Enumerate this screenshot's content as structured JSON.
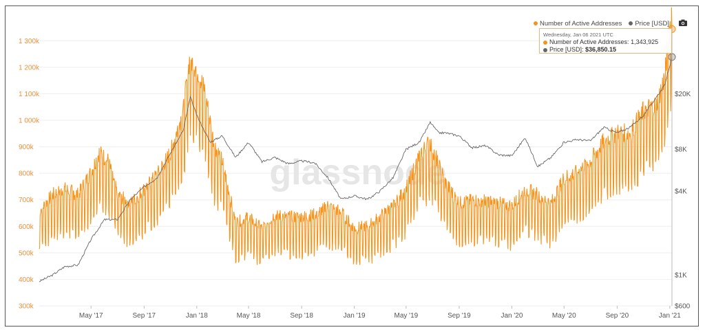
{
  "legend": {
    "series1": "Number of Active Addresses",
    "series2": "Price [USD]"
  },
  "tooltip": {
    "date": "Wednesday, Jan 06 2021 UTC",
    "line1_label": "Number of Active Addresses: ",
    "line1_value": "1,343,925",
    "line2_label": "Price [USD]: ",
    "line2_value": "$36,850.15"
  },
  "watermark": "glassnode",
  "icons": {
    "camera": "camera-icon"
  },
  "colors": {
    "active_addresses": "#f7931a",
    "price": "#666666",
    "left_axis": "#e8903a"
  },
  "chart_data": {
    "type": "line",
    "x_axis": {
      "range": [
        "2017-01-01",
        "2021-01-06"
      ],
      "ticks": [
        "May '17",
        "Sep '17",
        "Jan '18",
        "May '18",
        "Sep '18",
        "Jan '19",
        "May '19",
        "Sep '19",
        "Jan '20",
        "May '20",
        "Sep '20",
        "Jan '21"
      ]
    },
    "y_left": {
      "range": [
        300000,
        1350000
      ],
      "ticks": [
        300000,
        400000,
        500000,
        600000,
        700000,
        800000,
        900000,
        1000000,
        1100000,
        1200000,
        1300000
      ],
      "tick_labels": [
        "300k",
        "400k",
        "500k",
        "600k",
        "700k",
        "800k",
        "900k",
        "1 000k",
        "1 100k",
        "1 200k",
        "1 300k"
      ]
    },
    "y_right": {
      "scale": "log",
      "range": [
        600,
        60000
      ],
      "ticks": [
        600,
        1000,
        4000,
        8000,
        20000
      ],
      "tick_labels": [
        "$600",
        "$1K",
        "$4K",
        "$8K",
        "$20K"
      ]
    },
    "grid": "horizontal",
    "legend_position": "top-right",
    "series": [
      {
        "name": "Number of Active Addresses",
        "axis": "left",
        "color": "#f7931a",
        "points": [
          [
            "2017-01-01",
            620000
          ],
          [
            "2017-02-01",
            680000
          ],
          [
            "2017-03-01",
            700000
          ],
          [
            "2017-04-01",
            680000
          ],
          [
            "2017-05-01",
            760000
          ],
          [
            "2017-05-20",
            830000
          ],
          [
            "2017-06-10",
            800000
          ],
          [
            "2017-07-01",
            680000
          ],
          [
            "2017-08-01",
            650000
          ],
          [
            "2017-09-01",
            700000
          ],
          [
            "2017-10-01",
            750000
          ],
          [
            "2017-11-01",
            830000
          ],
          [
            "2017-12-01",
            980000
          ],
          [
            "2017-12-15",
            1160000
          ],
          [
            "2018-01-01",
            1130000
          ],
          [
            "2018-01-20",
            1050000
          ],
          [
            "2018-02-10",
            860000
          ],
          [
            "2018-03-01",
            800000
          ],
          [
            "2018-04-01",
            580000
          ],
          [
            "2018-05-01",
            600000
          ],
          [
            "2018-06-01",
            560000
          ],
          [
            "2018-07-01",
            610000
          ],
          [
            "2018-08-01",
            600000
          ],
          [
            "2018-09-01",
            600000
          ],
          [
            "2018-10-01",
            610000
          ],
          [
            "2018-11-01",
            640000
          ],
          [
            "2018-12-01",
            620000
          ],
          [
            "2019-01-01",
            560000
          ],
          [
            "2019-02-01",
            570000
          ],
          [
            "2019-03-01",
            600000
          ],
          [
            "2019-04-01",
            640000
          ],
          [
            "2019-05-01",
            700000
          ],
          [
            "2019-06-01",
            820000
          ],
          [
            "2019-06-25",
            870000
          ],
          [
            "2019-08-01",
            720000
          ],
          [
            "2019-09-01",
            650000
          ],
          [
            "2019-10-01",
            660000
          ],
          [
            "2019-11-01",
            660000
          ],
          [
            "2019-12-01",
            650000
          ],
          [
            "2020-01-01",
            640000
          ],
          [
            "2020-02-01",
            700000
          ],
          [
            "2020-03-01",
            680000
          ],
          [
            "2020-04-01",
            650000
          ],
          [
            "2020-05-01",
            740000
          ],
          [
            "2020-06-01",
            760000
          ],
          [
            "2020-07-01",
            800000
          ],
          [
            "2020-08-01",
            870000
          ],
          [
            "2020-09-01",
            900000
          ],
          [
            "2020-10-01",
            900000
          ],
          [
            "2020-11-01",
            980000
          ],
          [
            "2020-12-01",
            1000000
          ],
          [
            "2020-12-20",
            1100000
          ],
          [
            "2021-01-06",
            1343925
          ]
        ]
      },
      {
        "name": "Price [USD]",
        "axis": "right",
        "color": "#666666",
        "points": [
          [
            "2017-01-01",
            900
          ],
          [
            "2017-02-01",
            1000
          ],
          [
            "2017-03-01",
            1150
          ],
          [
            "2017-04-01",
            1180
          ],
          [
            "2017-05-01",
            1800
          ],
          [
            "2017-06-01",
            2500
          ],
          [
            "2017-07-01",
            2500
          ],
          [
            "2017-08-01",
            3500
          ],
          [
            "2017-09-01",
            4300
          ],
          [
            "2017-10-01",
            5000
          ],
          [
            "2017-11-01",
            7500
          ],
          [
            "2017-12-01",
            11000
          ],
          [
            "2017-12-17",
            19000
          ],
          [
            "2018-01-01",
            14000
          ],
          [
            "2018-02-01",
            9000
          ],
          [
            "2018-03-01",
            10000
          ],
          [
            "2018-04-01",
            7000
          ],
          [
            "2018-05-01",
            9000
          ],
          [
            "2018-06-01",
            6500
          ],
          [
            "2018-07-01",
            7000
          ],
          [
            "2018-08-01",
            6300
          ],
          [
            "2018-09-01",
            6600
          ],
          [
            "2018-10-01",
            6400
          ],
          [
            "2018-11-01",
            5000
          ],
          [
            "2018-12-01",
            3500
          ],
          [
            "2019-01-01",
            3700
          ],
          [
            "2019-02-01",
            3500
          ],
          [
            "2019-03-01",
            4000
          ],
          [
            "2019-04-01",
            5000
          ],
          [
            "2019-05-01",
            8000
          ],
          [
            "2019-06-01",
            9000
          ],
          [
            "2019-06-26",
            12500
          ],
          [
            "2019-07-15",
            10500
          ],
          [
            "2019-08-01",
            10500
          ],
          [
            "2019-09-01",
            10000
          ],
          [
            "2019-10-01",
            8200
          ],
          [
            "2019-11-01",
            8500
          ],
          [
            "2019-12-01",
            7300
          ],
          [
            "2020-01-01",
            7200
          ],
          [
            "2020-02-01",
            9700
          ],
          [
            "2020-03-01",
            6000
          ],
          [
            "2020-04-01",
            7000
          ],
          [
            "2020-05-01",
            9000
          ],
          [
            "2020-06-01",
            9400
          ],
          [
            "2020-07-01",
            9200
          ],
          [
            "2020-08-01",
            11500
          ],
          [
            "2020-09-01",
            10500
          ],
          [
            "2020-10-01",
            11500
          ],
          [
            "2020-11-01",
            14000
          ],
          [
            "2020-12-01",
            19000
          ],
          [
            "2020-12-20",
            23000
          ],
          [
            "2021-01-06",
            36850
          ]
        ]
      }
    ]
  }
}
